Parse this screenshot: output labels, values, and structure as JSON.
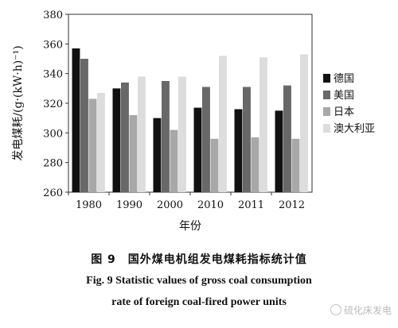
{
  "chart_data": {
    "type": "bar",
    "categories": [
      "1980",
      "1990",
      "2000",
      "2010",
      "2011",
      "2012"
    ],
    "series": [
      {
        "name": "德国",
        "values": [
          357,
          330,
          310,
          317,
          316,
          315
        ]
      },
      {
        "name": "美国",
        "values": [
          350,
          334,
          335,
          331,
          331,
          332
        ]
      },
      {
        "name": "日本",
        "values": [
          323,
          312,
          302,
          296,
          297,
          296
        ]
      },
      {
        "name": "澳大利亚",
        "values": [
          327,
          338,
          338,
          352,
          351,
          353
        ]
      }
    ],
    "series_colors": [
      "#111111",
      "#686868",
      "#a8a8a8",
      "#dddddd"
    ],
    "xlabel": "年份",
    "ylabel": "发电煤耗/(g·(kW·h)⁻¹)",
    "ylim": [
      260,
      380
    ],
    "yticks": [
      260,
      280,
      300,
      320,
      340,
      360,
      380
    ],
    "legend_position": "right",
    "grid": false
  },
  "caption": {
    "cn": "图 9　国外煤电机组发电煤耗指标统计值",
    "en_line1": "Fig. 9    Statistic values of gross coal consumption",
    "en_line2": "rate of foreign coal-fired power units"
  },
  "watermark": {
    "text": "硫化床发电",
    "icon": "wechat-icon"
  }
}
